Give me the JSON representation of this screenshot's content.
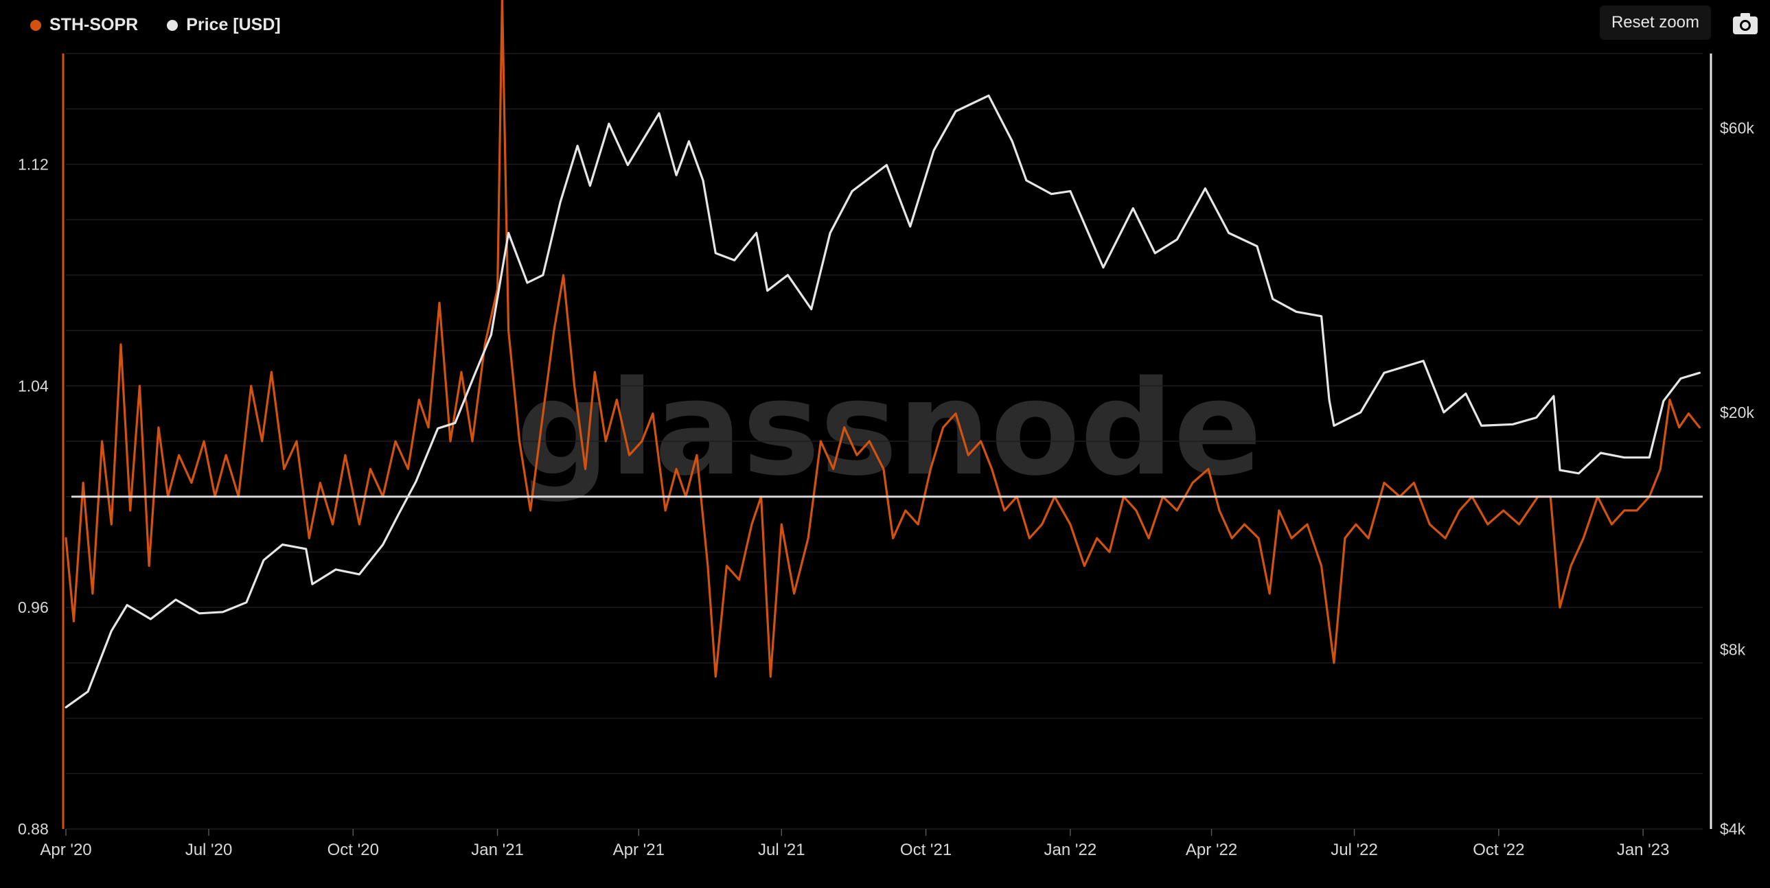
{
  "legend": {
    "sopr_label": "STH-SOPR",
    "price_label": "Price [USD]"
  },
  "toolbar": {
    "reset_zoom_label": "Reset zoom",
    "camera_icon": "camera-icon"
  },
  "watermark": "glassnode",
  "colors": {
    "sopr": "#d2520f",
    "price": "#e6e6e6",
    "baseline": "#d9d9d9",
    "grid": "#1c1c1c",
    "background": "#000000"
  },
  "chart_data": {
    "type": "line",
    "x_ticks": [
      "Apr '20",
      "Jul '20",
      "Oct '20",
      "Jan '21",
      "Apr '21",
      "Jul '21",
      "Oct '21",
      "Jan '22",
      "Apr '22",
      "Jul '22",
      "Oct '22",
      "Jan '23"
    ],
    "x_tick_dates": [
      "2020-04-01",
      "2020-07-01",
      "2020-10-01",
      "2021-01-01",
      "2021-04-01",
      "2021-07-01",
      "2021-10-01",
      "2022-01-01",
      "2022-04-01",
      "2022-07-01",
      "2022-10-01",
      "2023-01-01"
    ],
    "x_range": [
      "2020-04-01",
      "2023-02-08"
    ],
    "y_left": {
      "ticks": [
        "0.88",
        "0.96",
        "1.04",
        "1.12"
      ],
      "tick_values": [
        0.88,
        0.96,
        1.04,
        1.12
      ],
      "range": [
        0.88,
        1.16
      ]
    },
    "y_right": {
      "scale": "log",
      "ticks": [
        "$4k",
        "$8k",
        "$20k",
        "$60k"
      ],
      "tick_values": [
        4000,
        8000,
        20000,
        60000
      ],
      "range": [
        4000,
        80000
      ]
    },
    "reference_line": {
      "axis": "left",
      "value": 1.0
    },
    "series": [
      {
        "name": "STH-SOPR",
        "axis": "left",
        "points": [
          [
            "2020-04-01",
            0.985
          ],
          [
            "2020-04-06",
            0.955
          ],
          [
            "2020-04-12",
            1.005
          ],
          [
            "2020-04-18",
            0.965
          ],
          [
            "2020-04-24",
            1.02
          ],
          [
            "2020-04-30",
            0.99
          ],
          [
            "2020-05-06",
            1.055
          ],
          [
            "2020-05-12",
            0.995
          ],
          [
            "2020-05-18",
            1.04
          ],
          [
            "2020-05-24",
            0.975
          ],
          [
            "2020-05-30",
            1.025
          ],
          [
            "2020-06-05",
            1.0
          ],
          [
            "2020-06-12",
            1.015
          ],
          [
            "2020-06-20",
            1.005
          ],
          [
            "2020-06-28",
            1.02
          ],
          [
            "2020-07-05",
            1.0
          ],
          [
            "2020-07-12",
            1.015
          ],
          [
            "2020-07-20",
            1.0
          ],
          [
            "2020-07-28",
            1.04
          ],
          [
            "2020-08-04",
            1.02
          ],
          [
            "2020-08-10",
            1.045
          ],
          [
            "2020-08-18",
            1.01
          ],
          [
            "2020-08-26",
            1.02
          ],
          [
            "2020-09-03",
            0.985
          ],
          [
            "2020-09-10",
            1.005
          ],
          [
            "2020-09-18",
            0.99
          ],
          [
            "2020-09-26",
            1.015
          ],
          [
            "2020-10-05",
            0.99
          ],
          [
            "2020-10-12",
            1.01
          ],
          [
            "2020-10-20",
            1.0
          ],
          [
            "2020-10-28",
            1.02
          ],
          [
            "2020-11-05",
            1.01
          ],
          [
            "2020-11-12",
            1.035
          ],
          [
            "2020-11-18",
            1.025
          ],
          [
            "2020-11-25",
            1.07
          ],
          [
            "2020-12-02",
            1.02
          ],
          [
            "2020-12-09",
            1.045
          ],
          [
            "2020-12-16",
            1.02
          ],
          [
            "2020-12-24",
            1.055
          ],
          [
            "2021-01-01",
            1.075
          ],
          [
            "2021-01-04",
            1.18
          ],
          [
            "2021-01-08",
            1.06
          ],
          [
            "2021-01-15",
            1.02
          ],
          [
            "2021-01-22",
            0.995
          ],
          [
            "2021-01-30",
            1.03
          ],
          [
            "2021-02-06",
            1.06
          ],
          [
            "2021-02-12",
            1.08
          ],
          [
            "2021-02-19",
            1.04
          ],
          [
            "2021-02-26",
            1.01
          ],
          [
            "2021-03-04",
            1.045
          ],
          [
            "2021-03-11",
            1.02
          ],
          [
            "2021-03-18",
            1.035
          ],
          [
            "2021-03-26",
            1.015
          ],
          [
            "2021-04-03",
            1.02
          ],
          [
            "2021-04-10",
            1.03
          ],
          [
            "2021-04-18",
            0.995
          ],
          [
            "2021-04-25",
            1.01
          ],
          [
            "2021-05-01",
            1.0
          ],
          [
            "2021-05-08",
            1.015
          ],
          [
            "2021-05-15",
            0.975
          ],
          [
            "2021-05-20",
            0.935
          ],
          [
            "2021-05-27",
            0.975
          ],
          [
            "2021-06-04",
            0.97
          ],
          [
            "2021-06-12",
            0.99
          ],
          [
            "2021-06-18",
            1.0
          ],
          [
            "2021-06-24",
            0.935
          ],
          [
            "2021-07-01",
            0.99
          ],
          [
            "2021-07-09",
            0.965
          ],
          [
            "2021-07-18",
            0.985
          ],
          [
            "2021-07-26",
            1.02
          ],
          [
            "2021-08-03",
            1.01
          ],
          [
            "2021-08-10",
            1.025
          ],
          [
            "2021-08-18",
            1.015
          ],
          [
            "2021-08-26",
            1.02
          ],
          [
            "2021-09-04",
            1.01
          ],
          [
            "2021-09-10",
            0.985
          ],
          [
            "2021-09-18",
            0.995
          ],
          [
            "2021-09-26",
            0.99
          ],
          [
            "2021-10-04",
            1.01
          ],
          [
            "2021-10-12",
            1.025
          ],
          [
            "2021-10-20",
            1.03
          ],
          [
            "2021-10-28",
            1.015
          ],
          [
            "2021-11-05",
            1.02
          ],
          [
            "2021-11-12",
            1.01
          ],
          [
            "2021-11-20",
            0.995
          ],
          [
            "2021-11-28",
            1.0
          ],
          [
            "2021-12-06",
            0.985
          ],
          [
            "2021-12-14",
            0.99
          ],
          [
            "2021-12-22",
            1.0
          ],
          [
            "2022-01-01",
            0.99
          ],
          [
            "2022-01-10",
            0.975
          ],
          [
            "2022-01-18",
            0.985
          ],
          [
            "2022-01-26",
            0.98
          ],
          [
            "2022-02-04",
            1.0
          ],
          [
            "2022-02-12",
            0.995
          ],
          [
            "2022-02-20",
            0.985
          ],
          [
            "2022-03-01",
            1.0
          ],
          [
            "2022-03-10",
            0.995
          ],
          [
            "2022-03-20",
            1.005
          ],
          [
            "2022-03-30",
            1.01
          ],
          [
            "2022-04-06",
            0.995
          ],
          [
            "2022-04-14",
            0.985
          ],
          [
            "2022-04-22",
            0.99
          ],
          [
            "2022-05-01",
            0.985
          ],
          [
            "2022-05-08",
            0.965
          ],
          [
            "2022-05-14",
            0.995
          ],
          [
            "2022-05-22",
            0.985
          ],
          [
            "2022-06-01",
            0.99
          ],
          [
            "2022-06-10",
            0.975
          ],
          [
            "2022-06-18",
            0.94
          ],
          [
            "2022-06-25",
            0.985
          ],
          [
            "2022-07-02",
            0.99
          ],
          [
            "2022-07-10",
            0.985
          ],
          [
            "2022-07-20",
            1.005
          ],
          [
            "2022-07-30",
            1.0
          ],
          [
            "2022-08-08",
            1.005
          ],
          [
            "2022-08-18",
            0.99
          ],
          [
            "2022-08-28",
            0.985
          ],
          [
            "2022-09-06",
            0.995
          ],
          [
            "2022-09-14",
            1.0
          ],
          [
            "2022-09-24",
            0.99
          ],
          [
            "2022-10-04",
            0.995
          ],
          [
            "2022-10-14",
            0.99
          ],
          [
            "2022-10-26",
            1.0
          ],
          [
            "2022-11-03",
            1.0
          ],
          [
            "2022-11-09",
            0.96
          ],
          [
            "2022-11-16",
            0.975
          ],
          [
            "2022-11-24",
            0.985
          ],
          [
            "2022-12-03",
            1.0
          ],
          [
            "2022-12-12",
            0.99
          ],
          [
            "2022-12-20",
            0.995
          ],
          [
            "2022-12-28",
            0.995
          ],
          [
            "2023-01-05",
            1.0
          ],
          [
            "2023-01-12",
            1.01
          ],
          [
            "2023-01-18",
            1.035
          ],
          [
            "2023-01-24",
            1.025
          ],
          [
            "2023-01-30",
            1.03
          ],
          [
            "2023-02-06",
            1.025
          ]
        ]
      },
      {
        "name": "Price [USD]",
        "axis": "right",
        "points": [
          [
            "2020-04-01",
            6400
          ],
          [
            "2020-04-15",
            6800
          ],
          [
            "2020-04-30",
            8600
          ],
          [
            "2020-05-10",
            9500
          ],
          [
            "2020-05-25",
            9000
          ],
          [
            "2020-06-10",
            9700
          ],
          [
            "2020-06-25",
            9200
          ],
          [
            "2020-07-10",
            9250
          ],
          [
            "2020-07-25",
            9600
          ],
          [
            "2020-08-05",
            11300
          ],
          [
            "2020-08-17",
            12000
          ],
          [
            "2020-09-01",
            11800
          ],
          [
            "2020-09-05",
            10300
          ],
          [
            "2020-09-20",
            10900
          ],
          [
            "2020-10-05",
            10700
          ],
          [
            "2020-10-20",
            12000
          ],
          [
            "2020-10-30",
            13500
          ],
          [
            "2020-11-10",
            15300
          ],
          [
            "2020-11-24",
            18800
          ],
          [
            "2020-12-05",
            19200
          ],
          [
            "2020-12-17",
            23000
          ],
          [
            "2020-12-28",
            27000
          ],
          [
            "2021-01-08",
            40000
          ],
          [
            "2021-01-20",
            33000
          ],
          [
            "2021-01-30",
            34000
          ],
          [
            "2021-02-10",
            45000
          ],
          [
            "2021-02-21",
            56000
          ],
          [
            "2021-03-01",
            48000
          ],
          [
            "2021-03-13",
            61000
          ],
          [
            "2021-03-25",
            52000
          ],
          [
            "2021-04-14",
            63500
          ],
          [
            "2021-04-25",
            50000
          ],
          [
            "2021-05-03",
            57000
          ],
          [
            "2021-05-12",
            49000
          ],
          [
            "2021-05-20",
            37000
          ],
          [
            "2021-06-01",
            36000
          ],
          [
            "2021-06-15",
            40000
          ],
          [
            "2021-06-22",
            32000
          ],
          [
            "2021-07-05",
            34000
          ],
          [
            "2021-07-20",
            29800
          ],
          [
            "2021-08-01",
            40000
          ],
          [
            "2021-08-15",
            47000
          ],
          [
            "2021-09-06",
            52000
          ],
          [
            "2021-09-21",
            41000
          ],
          [
            "2021-10-06",
            55000
          ],
          [
            "2021-10-20",
            64000
          ],
          [
            "2021-11-10",
            68000
          ],
          [
            "2021-11-25",
            57000
          ],
          [
            "2021-12-04",
            49000
          ],
          [
            "2021-12-20",
            46500
          ],
          [
            "2022-01-01",
            47000
          ],
          [
            "2022-01-22",
            35000
          ],
          [
            "2022-02-10",
            44000
          ],
          [
            "2022-02-24",
            37000
          ],
          [
            "2022-03-10",
            39000
          ],
          [
            "2022-03-28",
            47500
          ],
          [
            "2022-04-12",
            40000
          ],
          [
            "2022-04-30",
            38000
          ],
          [
            "2022-05-10",
            31000
          ],
          [
            "2022-05-25",
            29500
          ],
          [
            "2022-06-10",
            29000
          ],
          [
            "2022-06-15",
            21000
          ],
          [
            "2022-06-18",
            19000
          ],
          [
            "2022-07-05",
            20000
          ],
          [
            "2022-07-20",
            23300
          ],
          [
            "2022-08-14",
            24400
          ],
          [
            "2022-08-27",
            20000
          ],
          [
            "2022-09-10",
            21500
          ],
          [
            "2022-09-20",
            19000
          ],
          [
            "2022-10-10",
            19100
          ],
          [
            "2022-10-25",
            19600
          ],
          [
            "2022-11-05",
            21300
          ],
          [
            "2022-11-09",
            16000
          ],
          [
            "2022-11-21",
            15800
          ],
          [
            "2022-12-05",
            17100
          ],
          [
            "2022-12-20",
            16800
          ],
          [
            "2023-01-05",
            16800
          ],
          [
            "2023-01-14",
            20900
          ],
          [
            "2023-01-25",
            22800
          ],
          [
            "2023-02-06",
            23300
          ]
        ]
      }
    ]
  }
}
